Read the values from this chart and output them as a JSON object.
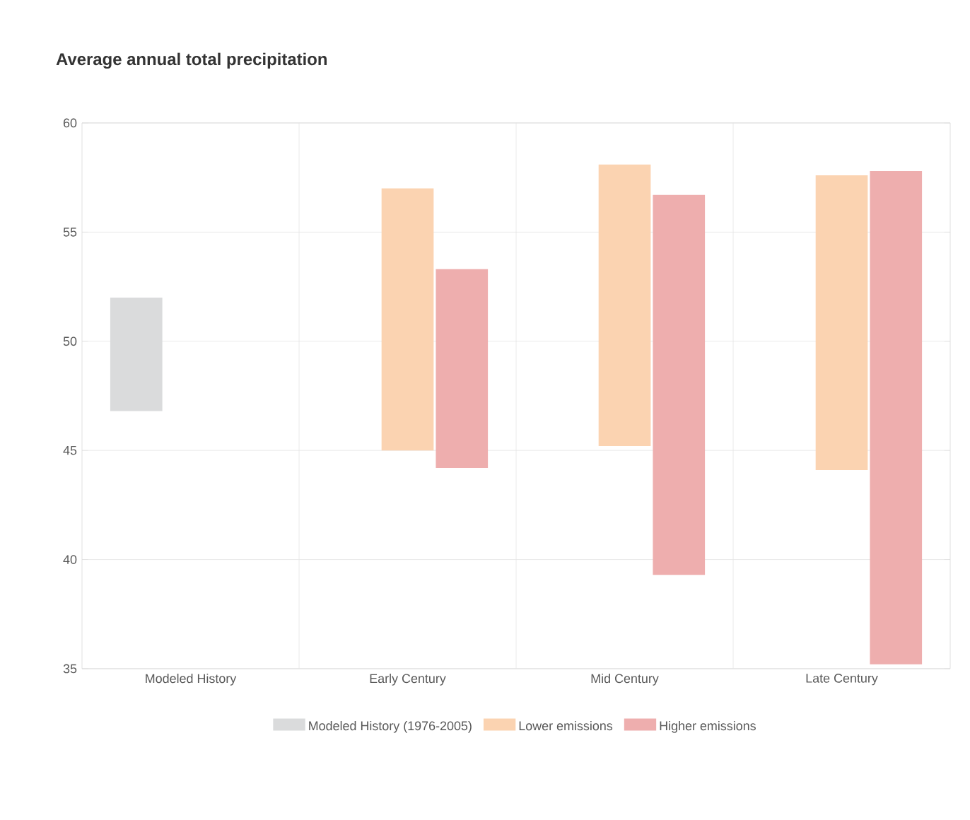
{
  "chart_data": {
    "type": "bar",
    "title": "Average annual total precipitation",
    "categories": [
      "Modeled History",
      "Early Century",
      "Mid Century",
      "Late Century"
    ],
    "series": [
      {
        "name": "Modeled History (1976-2005)",
        "color": "#dadbdc",
        "values": [
          5.2,
          null,
          null,
          null
        ],
        "base": [
          46.8,
          null,
          null,
          null
        ]
      },
      {
        "name": "Lower emissions",
        "color": "#fbd3b1",
        "values": [
          null,
          12.0,
          12.9,
          13.5
        ],
        "base": [
          null,
          45.0,
          45.2,
          44.1
        ]
      },
      {
        "name": "Higher emissions",
        "color": "#eeaeae",
        "values": [
          null,
          9.1,
          17.4,
          22.6
        ],
        "base": [
          null,
          44.2,
          39.3,
          35.2
        ]
      }
    ],
    "ylim": [
      35,
      60
    ],
    "yticks": [
      35,
      40,
      45,
      50,
      55,
      60
    ],
    "grid": true,
    "legend": "bottom"
  }
}
